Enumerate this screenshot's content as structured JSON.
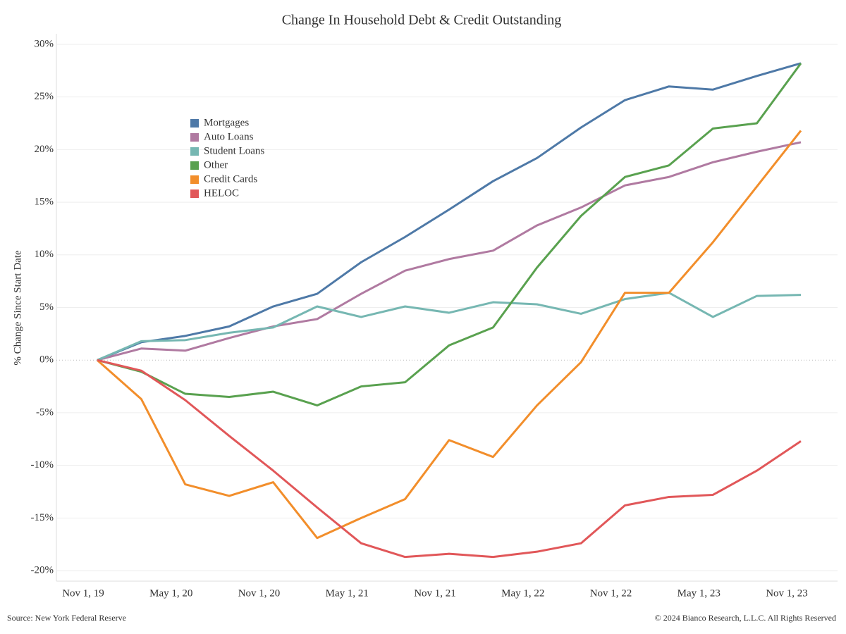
{
  "chart_data": {
    "type": "line",
    "title": "Change In Household Debt & Credit Outstanding",
    "y_label": "% Change Since Start Date",
    "source": "Source: New York Federal Reserve",
    "copyright": "© 2024 Bianco Research, L.L.C. All Rights Reserved",
    "categories": [
      "Nov 1, 19",
      null,
      "May 1, 20",
      null,
      "Nov 1, 20",
      null,
      "May 1, 21",
      null,
      "Nov 1, 21",
      null,
      "May 1, 22",
      null,
      "Nov 1, 22",
      null,
      "May 1, 23",
      null,
      "Nov 1, 23"
    ],
    "ylim": [
      -21,
      31
    ],
    "yticks": [
      {
        "value": -20,
        "label": "-20%"
      },
      {
        "value": -15,
        "label": "-15%"
      },
      {
        "value": -10,
        "label": "-10%"
      },
      {
        "value": -5,
        "label": "-5%"
      },
      {
        "value": 0,
        "label": "0%"
      },
      {
        "value": 5,
        "label": "5%"
      },
      {
        "value": 10,
        "label": "10%"
      },
      {
        "value": 15,
        "label": "15%"
      },
      {
        "value": 20,
        "label": "20%"
      },
      {
        "value": 25,
        "label": "25%"
      },
      {
        "value": 30,
        "label": "30%"
      }
    ],
    "grid": true,
    "legend": "upper left",
    "series": [
      {
        "name": "Mortgages",
        "color": "#4e79a7",
        "values": [
          0,
          1.7,
          2.3,
          3.2,
          5.1,
          6.3,
          9.3,
          11.7,
          14.3,
          17.0,
          19.2,
          22.1,
          24.7,
          26.0,
          25.7,
          27.0,
          28.2
        ]
      },
      {
        "name": "Auto Loans",
        "color": "#b07aa1",
        "values": [
          0,
          1.1,
          0.9,
          2.1,
          3.2,
          3.9,
          6.3,
          8.5,
          9.6,
          10.4,
          12.8,
          14.5,
          16.6,
          17.4,
          18.8,
          19.8,
          20.7
        ]
      },
      {
        "name": "Student Loans",
        "color": "#76b7b2",
        "values": [
          0,
          1.8,
          1.9,
          2.6,
          3.1,
          5.1,
          4.1,
          5.1,
          4.5,
          5.5,
          5.3,
          4.4,
          5.8,
          6.4,
          4.1,
          6.1,
          6.2
        ]
      },
      {
        "name": "Other",
        "color": "#59a14f",
        "values": [
          0,
          -1.1,
          -3.2,
          -3.5,
          -3.0,
          -4.3,
          -2.5,
          -2.1,
          1.4,
          3.1,
          8.8,
          13.7,
          17.4,
          18.5,
          22.0,
          22.5,
          28.2
        ]
      },
      {
        "name": "Credit Cards",
        "color": "#f28e2b",
        "values": [
          0,
          -3.7,
          -11.8,
          -12.9,
          -11.6,
          -16.9,
          -15.0,
          -13.2,
          -7.6,
          -9.2,
          -4.3,
          -0.2,
          6.4,
          6.4,
          11.2,
          16.5,
          21.8
        ]
      },
      {
        "name": "HELOC",
        "color": "#e15759",
        "values": [
          0,
          -1.0,
          -3.8,
          -7.2,
          -10.5,
          -14.0,
          -17.4,
          -18.7,
          -18.4,
          -18.7,
          -18.2,
          -17.4,
          -13.8,
          -13.0,
          -12.8,
          -10.5,
          -7.7
        ]
      }
    ]
  }
}
